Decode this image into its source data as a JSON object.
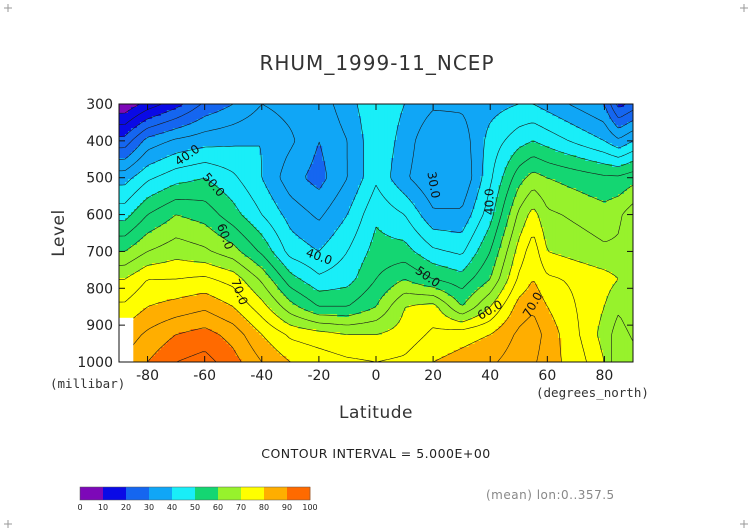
{
  "chart_data": {
    "type": "heatmap",
    "title": "RHUM_1999-11_NCEP",
    "xlabel": "Latitude",
    "ylabel": "Level",
    "x_unit": "(degrees_north)",
    "y_unit": "(millibar)",
    "xlim": [
      -90,
      90
    ],
    "ylim": [
      1000,
      300
    ],
    "x_ticks": [
      -80,
      -60,
      -40,
      -20,
      0,
      20,
      40,
      60,
      80
    ],
    "y_ticks": [
      300,
      400,
      500,
      600,
      700,
      800,
      900,
      1000
    ],
    "latitudes": [
      -88,
      -80,
      -70,
      -60,
      -50,
      -40,
      -30,
      -20,
      -10,
      0,
      10,
      20,
      30,
      40,
      50,
      55,
      60,
      70,
      80,
      85,
      90
    ],
    "levels": [
      1000,
      925,
      850,
      775,
      700,
      600,
      500,
      400,
      300
    ],
    "values": [
      [
        86,
        90,
        95,
        97,
        92,
        85,
        80,
        78,
        76,
        75,
        76,
        80,
        82,
        84,
        88,
        86,
        82,
        78,
        70,
        60,
        62
      ],
      [
        82,
        86,
        90,
        92,
        88,
        80,
        74,
        72,
        70,
        70,
        72,
        76,
        78,
        80,
        86,
        88,
        83,
        76,
        68,
        62,
        66
      ],
      [
        76,
        80,
        82,
        84,
        80,
        72,
        62,
        55,
        55,
        60,
        70,
        72,
        60,
        70,
        82,
        84,
        80,
        75,
        70,
        66,
        70
      ],
      [
        70,
        75,
        75,
        76,
        73,
        64,
        52,
        46,
        48,
        55,
        60,
        55,
        52,
        60,
        76,
        80,
        76,
        74,
        72,
        70,
        70
      ],
      [
        60,
        65,
        68,
        66,
        62,
        54,
        43,
        40,
        45,
        52,
        52,
        46,
        44,
        55,
        72,
        78,
        70,
        68,
        66,
        66,
        70
      ],
      [
        48,
        55,
        60,
        58,
        52,
        45,
        38,
        34,
        40,
        49,
        45,
        36,
        36,
        48,
        66,
        72,
        66,
        64,
        62,
        64,
        68
      ],
      [
        38,
        44,
        48,
        50,
        46,
        40,
        32,
        28,
        35,
        44,
        36,
        30,
        30,
        44,
        58,
        62,
        60,
        58,
        56,
        56,
        58
      ],
      [
        22,
        32,
        36,
        38,
        39,
        40,
        36,
        30,
        35,
        44,
        38,
        30,
        32,
        42,
        48,
        50,
        48,
        44,
        40,
        36,
        40
      ],
      [
        6,
        12,
        18,
        26,
        30,
        35,
        33,
        32,
        38,
        44,
        40,
        36,
        36,
        38,
        40,
        40,
        38,
        34,
        30,
        18,
        22
      ]
    ],
    "masked_region": {
      "lat_max": -85,
      "level_min": 880
    },
    "contour_interval": 5,
    "fill_interval": 10,
    "contour_labels": [
      {
        "text": "40.0",
        "lat": -66,
        "level": 440,
        "angle": -35
      },
      {
        "text": "50.0",
        "lat": -57,
        "level": 520,
        "angle": 50
      },
      {
        "text": "60.0",
        "lat": -53,
        "level": 660,
        "angle": 70
      },
      {
        "text": "70.0",
        "lat": -48,
        "level": 810,
        "angle": 70
      },
      {
        "text": "40.0",
        "lat": -20,
        "level": 715,
        "angle": 20
      },
      {
        "text": "30.0",
        "lat": 20,
        "level": 520,
        "angle": 80
      },
      {
        "text": "50.0",
        "lat": 18,
        "level": 770,
        "angle": 35
      },
      {
        "text": "40.0",
        "lat": 40,
        "level": 565,
        "angle": -90
      },
      {
        "text": "60.0",
        "lat": 40,
        "level": 860,
        "angle": -30
      },
      {
        "text": "70.0",
        "lat": 55,
        "level": 845,
        "angle": -60
      }
    ],
    "colorbar": {
      "ticks": [
        "0",
        "10",
        "20",
        "30",
        "40",
        "50",
        "60",
        "70",
        "80",
        "90",
        "100"
      ],
      "colors": [
        "#7d08b8",
        "#0a0ae6",
        "#1566f0",
        "#10a6f6",
        "#19eef8",
        "#14d672",
        "#97f22c",
        "#ffff00",
        "#ffae00",
        "#ff6a00",
        "#ff1a10"
      ]
    }
  },
  "annotations": {
    "contour_interval_text": "CONTOUR INTERVAL = 5.000E+00",
    "mean_text": "(mean) lon:0..357.5"
  }
}
